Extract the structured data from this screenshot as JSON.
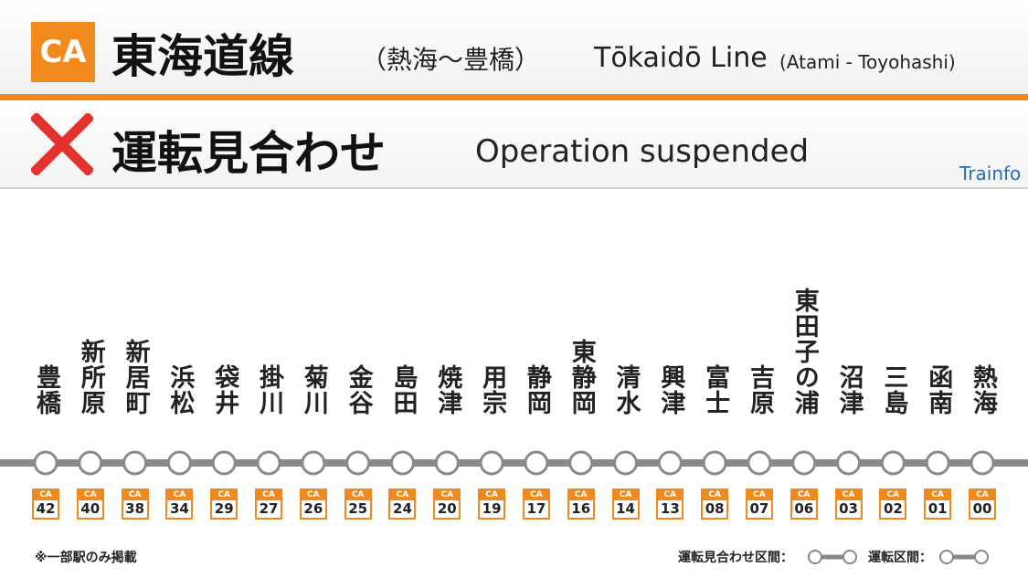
{
  "header": {
    "badge": "CA",
    "title": "東海道線",
    "title_sub": "（熱海〜豊橋）",
    "title_en": "Tōkaidō Line",
    "title_en_sub": "(Atami - Toyohashi)"
  },
  "status": {
    "text": "運転見合わせ",
    "text_en": "Operation suspended"
  },
  "brand": "Trainfo",
  "stations": [
    {
      "name": "豊橋",
      "code": "42"
    },
    {
      "name": "新所原",
      "code": "40"
    },
    {
      "name": "新居町",
      "code": "38"
    },
    {
      "name": "浜松",
      "code": "34"
    },
    {
      "name": "袋井",
      "code": "29"
    },
    {
      "name": "掛川",
      "code": "27"
    },
    {
      "name": "菊川",
      "code": "26"
    },
    {
      "name": "金谷",
      "code": "25"
    },
    {
      "name": "島田",
      "code": "24"
    },
    {
      "name": "焼津",
      "code": "20"
    },
    {
      "name": "用宗",
      "code": "19"
    },
    {
      "name": "静岡",
      "code": "17"
    },
    {
      "name": "東静岡",
      "code": "16"
    },
    {
      "name": "清水",
      "code": "14"
    },
    {
      "name": "興津",
      "code": "13"
    },
    {
      "name": "富士",
      "code": "08"
    },
    {
      "name": "吉原",
      "code": "07"
    },
    {
      "name": "東田子の浦",
      "code": "06"
    },
    {
      "name": "沼津",
      "code": "03"
    },
    {
      "name": "三島",
      "code": "02"
    },
    {
      "name": "函南",
      "code": "01"
    },
    {
      "name": "熱海",
      "code": "00"
    }
  ],
  "footer": {
    "note": "※一部駅のみ掲載",
    "legend_suspended": "運転見合わせ区間：",
    "legend_running": "運転区間："
  }
}
